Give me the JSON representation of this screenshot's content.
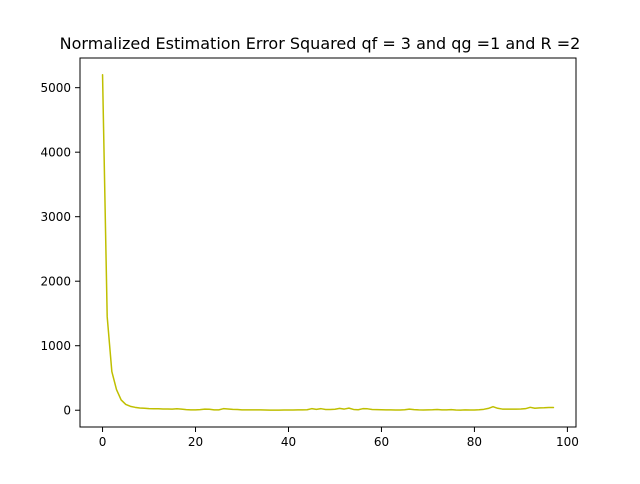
{
  "chart_data": {
    "type": "line",
    "title": "Normalized Estimation Error Squared qf = 3 and qg =1 and  R =2",
    "xlabel": "",
    "ylabel": "",
    "xlim": [
      -4.85,
      101.85
    ],
    "ylim": [
      -260,
      5460
    ],
    "xticks": [
      0,
      20,
      40,
      60,
      80,
      100
    ],
    "yticks": [
      0,
      1000,
      2000,
      3000,
      4000,
      5000
    ],
    "grid": false,
    "series": [
      {
        "color": "#bfbf00",
        "x": [
          0,
          1,
          2,
          3,
          4,
          5,
          6,
          7,
          8,
          9,
          10,
          11,
          12,
          13,
          14,
          15,
          16,
          17,
          18,
          19,
          20,
          21,
          22,
          23,
          24,
          25,
          26,
          27,
          28,
          29,
          30,
          31,
          32,
          33,
          34,
          35,
          36,
          37,
          38,
          39,
          40,
          41,
          42,
          43,
          44,
          45,
          46,
          47,
          48,
          49,
          50,
          51,
          52,
          53,
          54,
          55,
          56,
          57,
          58,
          59,
          60,
          61,
          62,
          63,
          64,
          65,
          66,
          67,
          68,
          69,
          70,
          71,
          72,
          73,
          74,
          75,
          76,
          77,
          78,
          79,
          80,
          81,
          82,
          83,
          84,
          85,
          86,
          87,
          88,
          89,
          90,
          91,
          92,
          93,
          94,
          95,
          96,
          97
        ],
        "y": [
          5200,
          1450,
          600,
          320,
          160,
          90,
          60,
          45,
          35,
          30,
          25,
          22,
          22,
          20,
          20,
          18,
          22,
          18,
          10,
          6,
          6,
          10,
          18,
          16,
          6,
          6,
          24,
          20,
          14,
          12,
          6,
          6,
          6,
          6,
          6,
          4,
          2,
          2,
          2,
          4,
          4,
          4,
          6,
          6,
          8,
          24,
          14,
          24,
          12,
          12,
          16,
          28,
          18,
          32,
          12,
          8,
          24,
          22,
          12,
          10,
          8,
          6,
          6,
          4,
          4,
          8,
          18,
          10,
          6,
          4,
          6,
          8,
          12,
          6,
          6,
          10,
          4,
          2,
          6,
          4,
          4,
          8,
          14,
          28,
          55,
          30,
          18,
          18,
          18,
          18,
          20,
          24,
          45,
          30,
          36,
          38,
          42,
          42
        ]
      }
    ]
  }
}
